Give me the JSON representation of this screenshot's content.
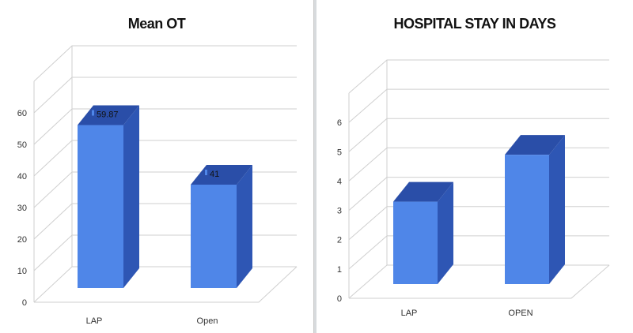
{
  "colors": {
    "bar_front": "#4f86e8",
    "bar_side": "#2e56b4",
    "bar_top": "#2a4ea8",
    "grid": "#cfcfcf"
  },
  "chart_data": [
    {
      "type": "bar",
      "title": "Mean OT",
      "categories": [
        "LAP",
        "Open"
      ],
      "values": [
        59.87,
        41
      ],
      "data_labels": [
        "59.87",
        "41"
      ],
      "yticks": [
        0,
        10,
        20,
        30,
        40,
        50,
        60
      ],
      "ylim": [
        0,
        70
      ],
      "grid": true,
      "style": "3d-column"
    },
    {
      "type": "bar",
      "title": "HOSPITAL STAY IN DAYS",
      "categories": [
        "LAP",
        "OPEN"
      ],
      "values": [
        3.7,
        5.3
      ],
      "yticks": [
        0,
        1,
        2,
        3,
        4,
        5,
        6
      ],
      "ylim": [
        0,
        7
      ],
      "grid": true,
      "style": "3d-column"
    }
  ]
}
